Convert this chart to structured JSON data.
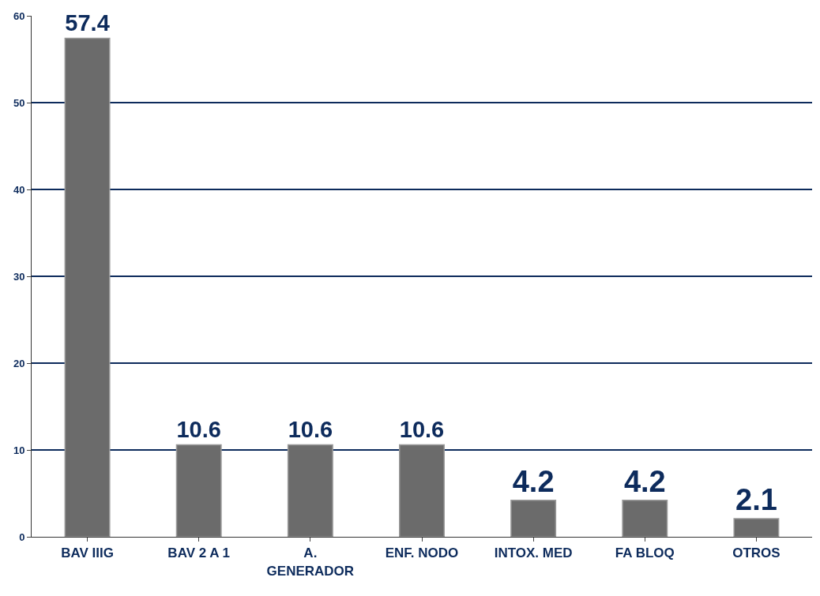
{
  "chart_data": {
    "type": "bar",
    "categories": [
      "BAV IIIG",
      "BAV 2 A 1",
      "A. GENERADOR",
      "ENF. NODO",
      "INTOX. MED",
      "FA BLOQ",
      "OTROS"
    ],
    "values": [
      57.4,
      10.6,
      10.6,
      10.6,
      4.2,
      4.2,
      2.1
    ],
    "color": "#6b6b6b",
    "ylim": [
      0,
      60
    ],
    "yticks": [
      0,
      10,
      20,
      30,
      40,
      50,
      60
    ],
    "grid": "y",
    "data_labels": true
  }
}
